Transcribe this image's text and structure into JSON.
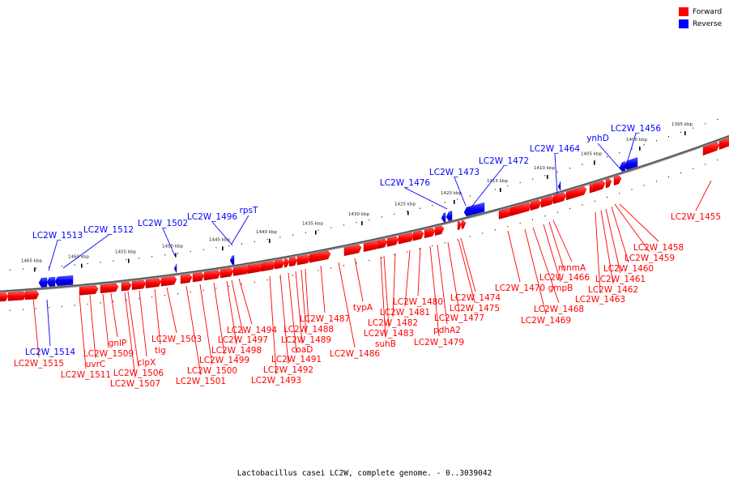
{
  "legend": {
    "forward_label": "Forward",
    "reverse_label": "Reverse",
    "forward_color": "#ff0000",
    "reverse_color": "#0000ff"
  },
  "caption": "Lactobacillus casei LC2W, complete genome. - 0..3039042",
  "tick_labels": [
    "1395 kbp",
    "1400 kbp",
    "1405 kbp",
    "1410 kbp",
    "1415 kbp",
    "1420 kbp",
    "1425 kbp",
    "1430 kbp",
    "1435 kbp",
    "1440 kbp",
    "1445 kbp",
    "1450 kbp",
    "1455 kbp",
    "1460 kbp",
    "1465 kbp"
  ],
  "genes": [
    {
      "name": "LC2W_1456",
      "strand": "reverse"
    },
    {
      "name": "ynhD",
      "strand": "reverse"
    },
    {
      "name": "LC2W_1464",
      "strand": "reverse"
    },
    {
      "name": "LC2W_1472",
      "strand": "reverse"
    },
    {
      "name": "LC2W_1473",
      "strand": "reverse"
    },
    {
      "name": "LC2W_1476",
      "strand": "reverse"
    },
    {
      "name": "rpsT",
      "strand": "reverse"
    },
    {
      "name": "LC2W_1496",
      "strand": "reverse"
    },
    {
      "name": "LC2W_1502",
      "strand": "reverse"
    },
    {
      "name": "LC2W_1512",
      "strand": "reverse"
    },
    {
      "name": "LC2W_1513",
      "strand": "reverse"
    },
    {
      "name": "LC2W_1514",
      "strand": "reverse"
    },
    {
      "name": "LC2W_1455",
      "strand": "forward"
    },
    {
      "name": "LC2W_1458",
      "strand": "forward"
    },
    {
      "name": "LC2W_1459",
      "strand": "forward"
    },
    {
      "name": "LC2W_1460",
      "strand": "forward"
    },
    {
      "name": "LC2W_1461",
      "strand": "forward"
    },
    {
      "name": "LC2W_1462",
      "strand": "forward"
    },
    {
      "name": "LC2W_1463",
      "strand": "forward"
    },
    {
      "name": "mnmA",
      "strand": "forward"
    },
    {
      "name": "LC2W_1466",
      "strand": "forward"
    },
    {
      "name": "gmpB",
      "strand": "forward"
    },
    {
      "name": "LC2W_1468",
      "strand": "forward"
    },
    {
      "name": "LC2W_1469",
      "strand": "forward"
    },
    {
      "name": "LC2W_1470",
      "strand": "forward"
    },
    {
      "name": "LC2W_1474",
      "strand": "forward"
    },
    {
      "name": "LC2W_1475",
      "strand": "forward"
    },
    {
      "name": "LC2W_1477",
      "strand": "forward"
    },
    {
      "name": "LC2W_1479",
      "strand": "forward"
    },
    {
      "name": "pdhA2",
      "strand": "forward"
    },
    {
      "name": "LC2W_1480",
      "strand": "forward"
    },
    {
      "name": "LC2W_1481",
      "strand": "forward"
    },
    {
      "name": "LC2W_1482",
      "strand": "forward"
    },
    {
      "name": "LC2W_1483",
      "strand": "forward"
    },
    {
      "name": "suhB",
      "strand": "forward"
    },
    {
      "name": "typA",
      "strand": "forward"
    },
    {
      "name": "LC2W_1486",
      "strand": "forward"
    },
    {
      "name": "LC2W_1487",
      "strand": "forward"
    },
    {
      "name": "LC2W_1488",
      "strand": "forward"
    },
    {
      "name": "LC2W_1489",
      "strand": "forward"
    },
    {
      "name": "coaD",
      "strand": "forward"
    },
    {
      "name": "LC2W_1491",
      "strand": "forward"
    },
    {
      "name": "LC2W_1492",
      "strand": "forward"
    },
    {
      "name": "LC2W_1493",
      "strand": "forward"
    },
    {
      "name": "LC2W_1494",
      "strand": "forward"
    },
    {
      "name": "LC2W_1497",
      "strand": "forward"
    },
    {
      "name": "LC2W_1498",
      "strand": "forward"
    },
    {
      "name": "LC2W_1499",
      "strand": "forward"
    },
    {
      "name": "LC2W_1500",
      "strand": "forward"
    },
    {
      "name": "LC2W_1501",
      "strand": "forward"
    },
    {
      "name": "LC2W_1503",
      "strand": "forward"
    },
    {
      "name": "tig",
      "strand": "forward"
    },
    {
      "name": "clpX",
      "strand": "forward"
    },
    {
      "name": "LC2W_1506",
      "strand": "forward"
    },
    {
      "name": "LC2W_1507",
      "strand": "forward"
    },
    {
      "name": "gnlP",
      "strand": "forward"
    },
    {
      "name": "LC2W_1509",
      "strand": "forward"
    },
    {
      "name": "uvrC",
      "strand": "forward"
    },
    {
      "name": "LC2W_1511",
      "strand": "forward"
    },
    {
      "name": "LC2W_1515",
      "strand": "forward"
    }
  ]
}
